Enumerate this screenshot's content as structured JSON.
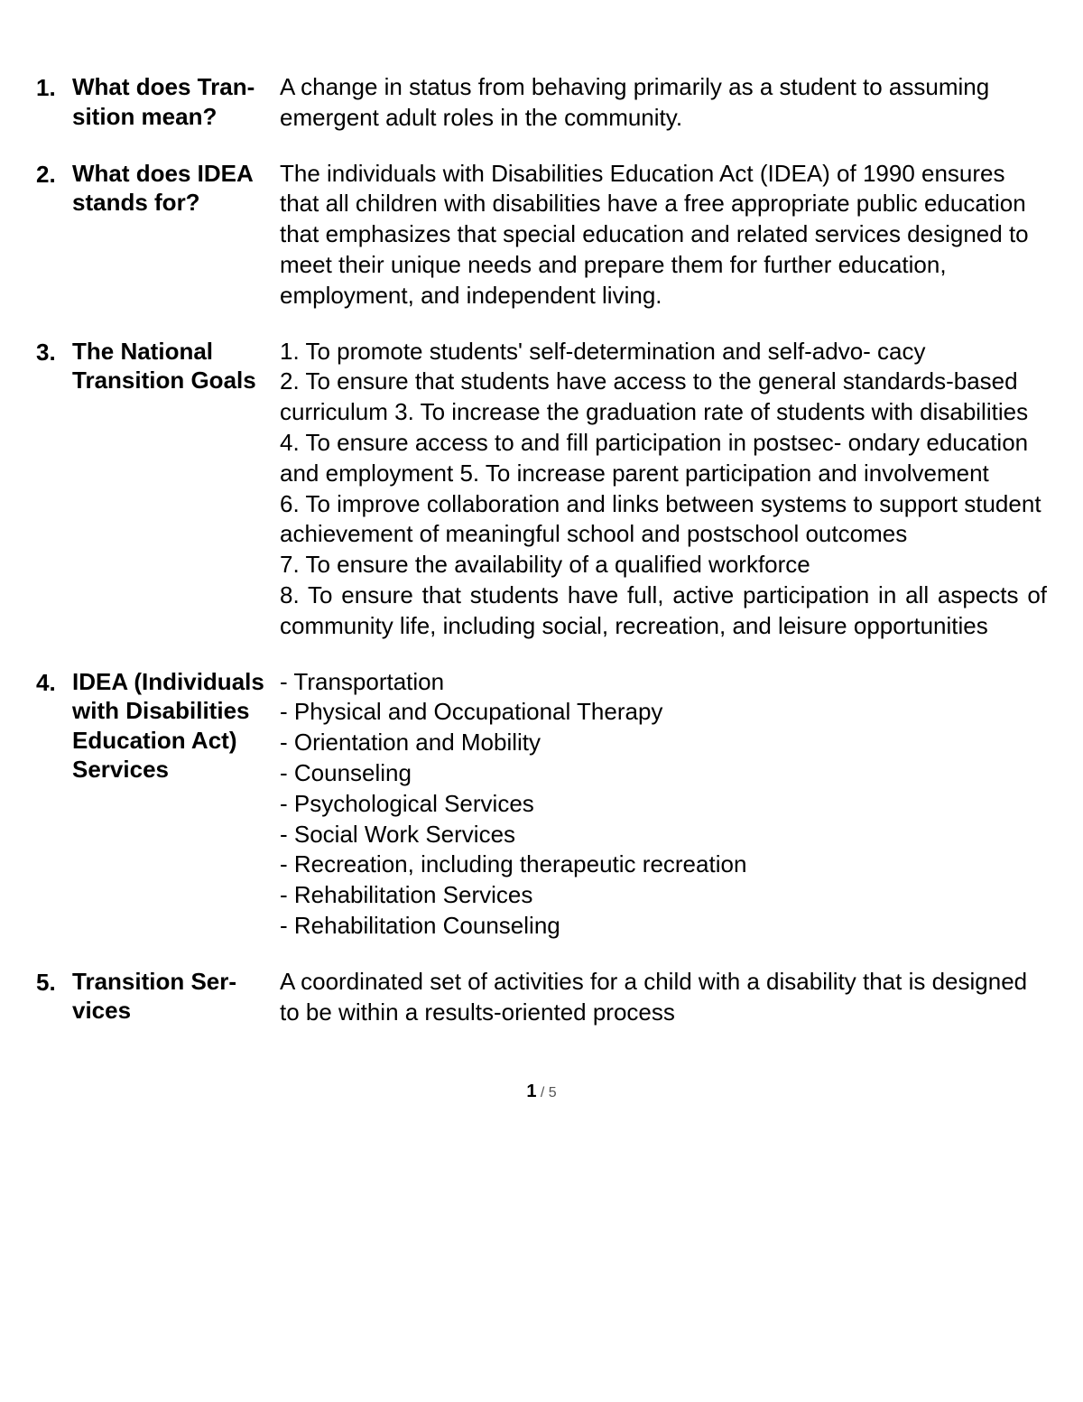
{
  "entries": [
    {
      "num": "1.",
      "term": "What does Tran- sition mean?",
      "def": "A change in status from behaving primarily as a student to assuming emergent adult roles in the community."
    },
    {
      "num": "2.",
      "term": "What does IDEA stands for?",
      "def": "The individuals with Disabilities Education Act (IDEA) of 1990 ensures that all children with disabilities have a free appropriate public education that emphasizes that special education and related services designed to meet their unique needs and prepare them for further education, employment, and independent living."
    },
    {
      "num": "3.",
      "term": "The National Transition Goals",
      "defLines": [
        "1. To promote students' self-determination and self-advo- cacy",
        "2. To ensure that students have access to the general standards-based curriculum 3. To increase the graduation rate of students with disabilities",
        "4. To ensure access to and fill participation in postsec- ondary education and employment 5. To increase parent participation and involvement",
        "6. To improve collaboration and links between systems to support student achievement of meaningful school and postschool outcomes",
        "7. To ensure the availability of a qualified workforce"
      ],
      "defJustify": "8. To ensure that students have full, active participation in all aspects of community life, including social, recreation, and leisure opportunities"
    },
    {
      "num": "4.",
      "term": "IDEA (Individuals with Disabilities Education Act) Services",
      "defLines": [
        "- Transportation",
        "- Physical and Occupational Therapy",
        "- Orientation and Mobility",
        "- Counseling",
        "- Psychological Services",
        "- Social Work Services",
        "- Recreation, including therapeutic recreation",
        "- Rehabilitation Services",
        "- Rehabilitation Counseling"
      ]
    },
    {
      "num": "5.",
      "term": "Transition Ser- vices",
      "def": "A coordinated set of activities for a child with a disability that is designed to be within a results-oriented process"
    }
  ],
  "page": {
    "current": "1",
    "sep": " / ",
    "total": "5"
  }
}
